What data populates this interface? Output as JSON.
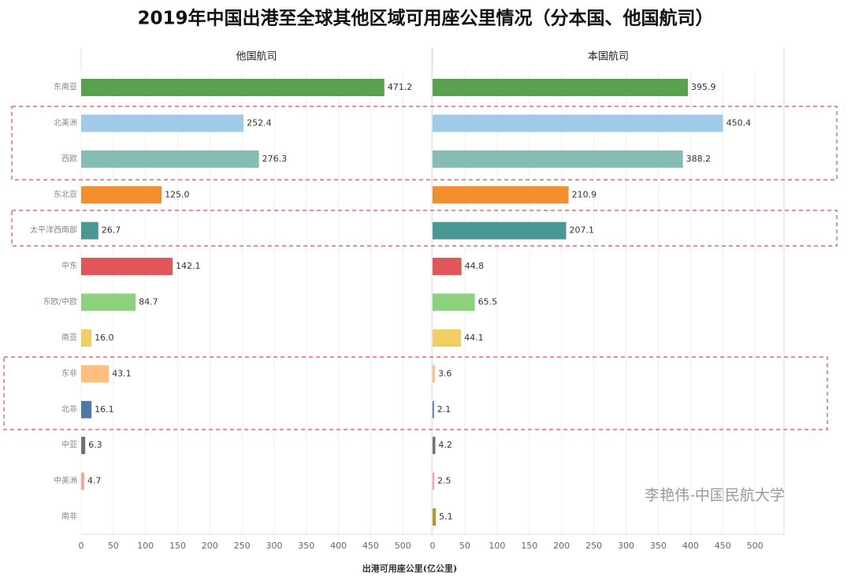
{
  "chart_data": {
    "type": "bar",
    "title": "2019年中国出港至全球其他区域可用座公里情况（分本国、他国航司）",
    "x_label": "出港可用座公里(亿公里)",
    "annotation": "李艳伟-中国民航大学",
    "categories": [
      "东南亚",
      "北美洲",
      "西欧",
      "东北亚",
      "太平洋西南部",
      "中东",
      "东欧/中欧",
      "南亚",
      "东非",
      "北非",
      "中亚",
      "中美洲",
      "南非"
    ],
    "colors": [
      "#59a14f",
      "#a0cbe8",
      "#86bcb6",
      "#f28e2b",
      "#499894",
      "#e15759",
      "#8cd17d",
      "#f1ce63",
      "#ffbe7d",
      "#4e79a7",
      "#79706e",
      "#ff9d9a",
      "#b6992d"
    ],
    "series": [
      {
        "name": "他国航司",
        "values": [
          471.2,
          252.4,
          276.3,
          125.0,
          26.7,
          142.1,
          84.7,
          16.0,
          43.1,
          16.1,
          6.3,
          4.7,
          null
        ],
        "value_labels": [
          "471.2",
          "252.4",
          "276.3",
          "125.0",
          "26.7",
          "142.1",
          "84.7",
          "16.0",
          "43.1",
          "16.1",
          "6.3",
          "4.7",
          null
        ]
      },
      {
        "name": "本国航司",
        "values": [
          395.9,
          450.4,
          388.2,
          210.9,
          207.1,
          44.8,
          65.5,
          44.1,
          3.6,
          2.1,
          4.2,
          2.5,
          5.1
        ],
        "value_labels": [
          "395.9",
          "450.4",
          "388.2",
          "210.9",
          "207.1",
          "44.8",
          "65.5",
          "44.1",
          "3.6",
          "2.1",
          "4.2",
          "2.5",
          "5.1"
        ]
      }
    ],
    "xlim": [
      0,
      545
    ],
    "xticks": [
      0,
      50,
      100,
      150,
      200,
      250,
      300,
      350,
      400,
      450,
      500
    ],
    "grid": true
  }
}
